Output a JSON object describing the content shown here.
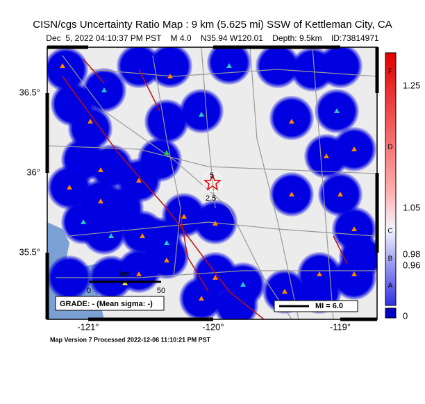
{
  "title": "CISN/cgs Uncertainty Ratio Map : 9 km (5.625 mi) SSW of Kettleman City, CA",
  "subtitle": "Dec  5, 2022 04:10:37 PM PST    M 4.0    N35.94 W120.01    Depth: 9.5km    ID:73814971",
  "map": {
    "lat_labels": [
      "36.5°",
      "36°",
      "35.5°"
    ],
    "lon_labels": [
      "-121°",
      "-120°",
      "-119°"
    ],
    "contour_labels": [
      "5",
      "2.5"
    ],
    "scale_bar": {
      "unit": "km",
      "labels": [
        "0",
        "50"
      ]
    },
    "grade": "GRADE: - (Mean sigma: -)",
    "mi_legend": "MI = 6.0"
  },
  "colorbar": {
    "letters": [
      "F",
      "D",
      "C",
      "B",
      "A"
    ],
    "values": [
      "1.25",
      "1.05",
      "0.98",
      "0.96",
      "0"
    ]
  },
  "footer": "Map Version 7 Processed 2022-12-06 11:10:21 PM PST"
}
